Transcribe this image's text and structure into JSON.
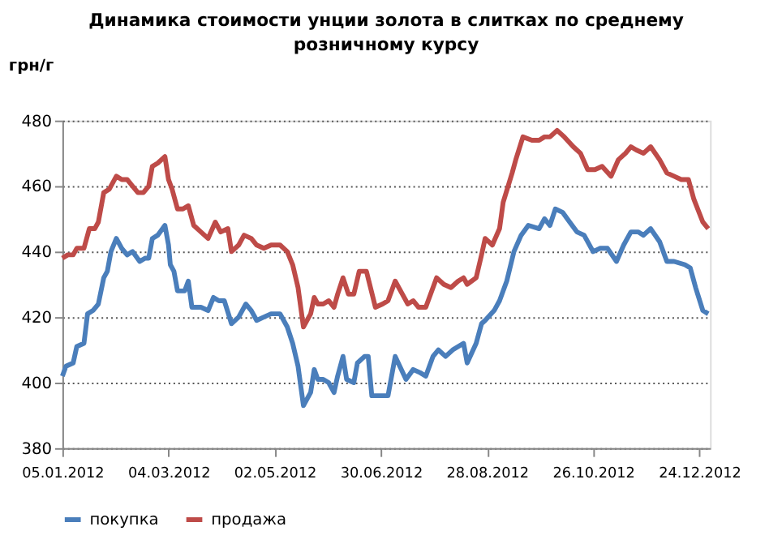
{
  "chart_data": {
    "type": "line",
    "title": "Динамика стоимости унции золота в слитках по среднему розничному курсу",
    "ylabel": "грн/г",
    "ylim": [
      380,
      480
    ],
    "yticks": [
      380,
      400,
      420,
      440,
      460,
      480
    ],
    "xlim": [
      "2012-01-05",
      "2012-12-30"
    ],
    "xticks": [
      {
        "value": "2012-01-05",
        "label": "05.01.2012"
      },
      {
        "value": "2012-03-04",
        "label": "04.03.2012"
      },
      {
        "value": "2012-05-02",
        "label": "02.05.2012"
      },
      {
        "value": "2012-06-30",
        "label": "30.06.2012"
      },
      {
        "value": "2012-08-28",
        "label": "28.08.2012"
      },
      {
        "value": "2012-10-26",
        "label": "26.10.2012"
      },
      {
        "value": "2012-12-24",
        "label": "24.12.2012"
      }
    ],
    "grid": "y",
    "legend": "bottom",
    "marker": "none",
    "line_style": "solid",
    "series": [
      {
        "name": "покупка",
        "color": "#4a7ebb",
        "x": [
          "2012-01-05",
          "2012-01-07",
          "2012-01-11",
          "2012-01-13",
          "2012-01-17",
          "2012-01-19",
          "2012-01-22",
          "2012-01-25",
          "2012-01-28",
          "2012-01-30",
          "2012-02-01",
          "2012-02-04",
          "2012-02-07",
          "2012-02-10",
          "2012-02-13",
          "2012-02-17",
          "2012-02-20",
          "2012-02-22",
          "2012-02-24",
          "2012-02-27",
          "2012-03-02",
          "2012-03-04",
          "2012-03-05",
          "2012-03-07",
          "2012-03-09",
          "2012-03-13",
          "2012-03-15",
          "2012-03-17",
          "2012-03-22",
          "2012-03-26",
          "2012-03-29",
          "2012-04-01",
          "2012-04-04",
          "2012-04-08",
          "2012-04-12",
          "2012-04-16",
          "2012-04-19",
          "2012-04-22",
          "2012-04-26",
          "2012-04-30",
          "2012-05-05",
          "2012-05-09",
          "2012-05-12",
          "2012-05-15",
          "2012-05-18",
          "2012-05-22",
          "2012-05-24",
          "2012-05-26",
          "2012-05-29",
          "2012-06-01",
          "2012-06-04",
          "2012-06-06",
          "2012-06-09",
          "2012-06-11",
          "2012-06-15",
          "2012-06-17",
          "2012-06-21",
          "2012-06-23",
          "2012-06-25",
          "2012-06-29",
          "2012-07-04",
          "2012-07-08",
          "2012-07-14",
          "2012-07-18",
          "2012-07-22",
          "2012-07-25",
          "2012-07-29",
          "2012-08-01",
          "2012-08-05",
          "2012-08-09",
          "2012-08-12",
          "2012-08-15",
          "2012-08-17",
          "2012-08-22",
          "2012-08-25",
          "2012-08-27",
          "2012-09-01",
          "2012-09-04",
          "2012-09-08",
          "2012-09-12",
          "2012-09-16",
          "2012-09-20",
          "2012-09-26",
          "2012-09-29",
          "2012-10-02",
          "2012-10-05",
          "2012-10-09",
          "2012-10-13",
          "2012-10-17",
          "2012-10-21",
          "2012-10-26",
          "2012-10-30",
          "2012-11-03",
          "2012-11-08",
          "2012-11-12",
          "2012-11-16",
          "2012-11-20",
          "2012-11-23",
          "2012-11-27",
          "2012-12-02",
          "2012-12-06",
          "2012-12-10",
          "2012-12-16",
          "2012-12-19",
          "2012-12-22",
          "2012-12-26",
          "2012-12-29"
        ],
        "values": [
          402,
          405,
          406,
          411,
          412,
          421,
          422,
          424,
          432,
          434,
          440,
          444,
          441,
          439,
          440,
          437,
          438,
          438,
          444,
          445,
          448,
          442,
          436,
          434,
          428,
          428,
          431,
          423,
          423,
          422,
          426,
          425,
          425,
          418,
          420,
          424,
          422,
          419,
          420,
          421,
          421,
          417,
          412,
          405,
          393,
          397,
          404,
          401,
          401,
          400,
          397,
          402,
          408,
          401,
          400,
          406,
          408,
          408,
          396,
          396,
          396,
          408,
          401,
          404,
          403,
          402,
          408,
          410,
          408,
          410,
          411,
          412,
          406,
          412,
          418,
          419,
          422,
          425,
          431,
          440,
          445,
          448,
          447,
          450,
          448,
          453,
          452,
          449,
          446,
          445,
          440,
          441,
          441,
          437,
          442,
          446,
          446,
          445,
          447,
          443,
          437,
          437,
          436,
          435,
          429,
          422,
          421
        ]
      },
      {
        "name": "продажа",
        "color": "#be4b48",
        "x": [
          "2012-01-05",
          "2012-01-08",
          "2012-01-11",
          "2012-01-13",
          "2012-01-17",
          "2012-01-20",
          "2012-01-23",
          "2012-01-25",
          "2012-01-28",
          "2012-01-31",
          "2012-02-04",
          "2012-02-07",
          "2012-02-10",
          "2012-02-13",
          "2012-02-16",
          "2012-02-19",
          "2012-02-22",
          "2012-02-24",
          "2012-02-27",
          "2012-03-02",
          "2012-03-04",
          "2012-03-06",
          "2012-03-09",
          "2012-03-12",
          "2012-03-15",
          "2012-03-18",
          "2012-03-22",
          "2012-03-26",
          "2012-03-30",
          "2012-04-02",
          "2012-04-06",
          "2012-04-08",
          "2012-04-12",
          "2012-04-15",
          "2012-04-19",
          "2012-04-22",
          "2012-04-26",
          "2012-04-30",
          "2012-05-05",
          "2012-05-09",
          "2012-05-12",
          "2012-05-15",
          "2012-05-18",
          "2012-05-22",
          "2012-05-24",
          "2012-05-26",
          "2012-05-29",
          "2012-06-01",
          "2012-06-04",
          "2012-06-06",
          "2012-06-09",
          "2012-06-12",
          "2012-06-15",
          "2012-06-18",
          "2012-06-22",
          "2012-06-27",
          "2012-07-01",
          "2012-07-04",
          "2012-07-08",
          "2012-07-12",
          "2012-07-15",
          "2012-07-18",
          "2012-07-21",
          "2012-07-25",
          "2012-07-31",
          "2012-08-04",
          "2012-08-08",
          "2012-08-12",
          "2012-08-15",
          "2012-08-17",
          "2012-08-22",
          "2012-08-25",
          "2012-08-27",
          "2012-08-31",
          "2012-09-04",
          "2012-09-06",
          "2012-09-11",
          "2012-09-13",
          "2012-09-17",
          "2012-09-22",
          "2012-09-26",
          "2012-09-29",
          "2012-10-02",
          "2012-10-06",
          "2012-10-10",
          "2012-10-15",
          "2012-10-19",
          "2012-10-23",
          "2012-10-27",
          "2012-10-31",
          "2012-11-05",
          "2012-11-09",
          "2012-11-13",
          "2012-11-16",
          "2012-11-19",
          "2012-11-23",
          "2012-11-27",
          "2012-12-02",
          "2012-12-06",
          "2012-12-10",
          "2012-12-14",
          "2012-12-18",
          "2012-12-21",
          "2012-12-26",
          "2012-12-29"
        ],
        "values": [
          438,
          439,
          439,
          441,
          441,
          447,
          447,
          449,
          458,
          459,
          463,
          462,
          462,
          460,
          458,
          458,
          460,
          466,
          467,
          469,
          462,
          459,
          453,
          453,
          454,
          448,
          446,
          444,
          449,
          446,
          447,
          440,
          442,
          445,
          444,
          442,
          441,
          442,
          442,
          440,
          436,
          429,
          417,
          421,
          426,
          424,
          424,
          425,
          423,
          427,
          432,
          427,
          427,
          434,
          434,
          423,
          424,
          425,
          431,
          427,
          424,
          425,
          423,
          423,
          432,
          430,
          429,
          431,
          432,
          430,
          432,
          439,
          444,
          442,
          447,
          455,
          464,
          468,
          475,
          474,
          474,
          475,
          475,
          477,
          475,
          472,
          470,
          465,
          465,
          466,
          463,
          468,
          470,
          472,
          471,
          470,
          472,
          468,
          464,
          463,
          462,
          462,
          456,
          449,
          447
        ]
      }
    ]
  }
}
